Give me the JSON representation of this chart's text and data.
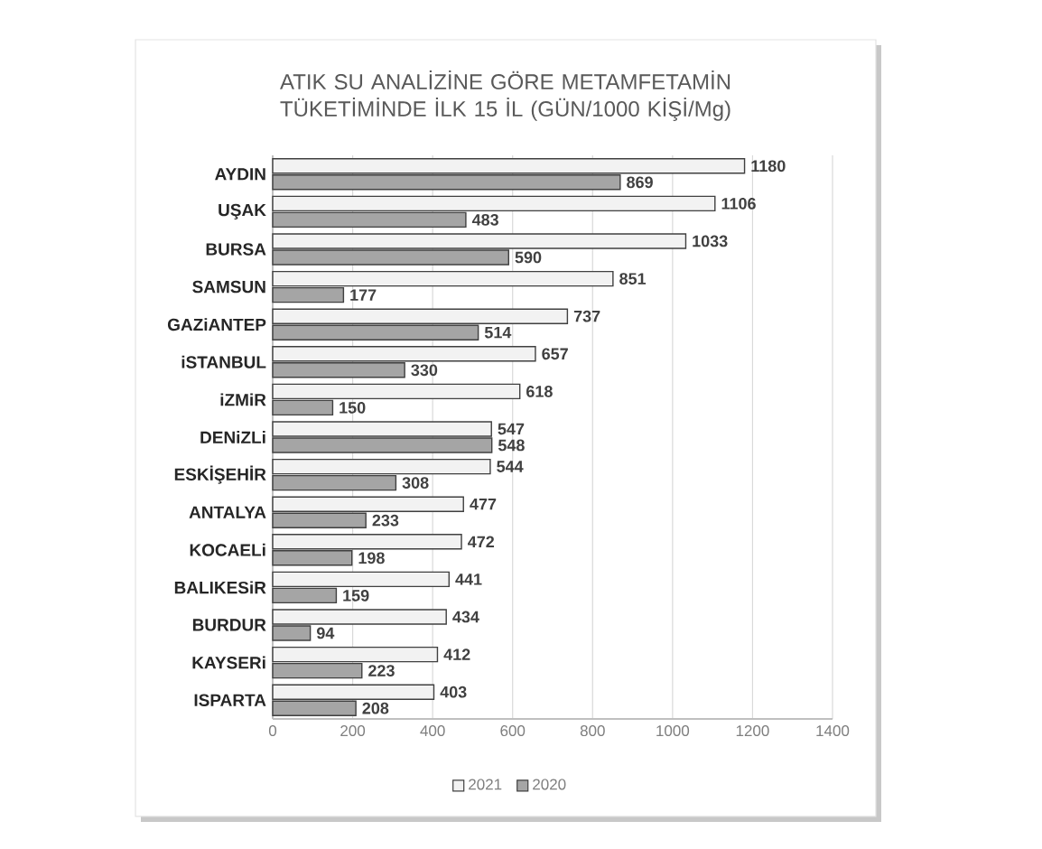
{
  "chart_data": {
    "type": "bar",
    "orientation": "horizontal",
    "title": "ATIK SU ANALİZİNE GÖRE METAMFETAMİN TÜKETİMİNDE İLK 15 İL (GÜN/1000 KİŞİ/Mg)",
    "categories": [
      "AYDIN",
      "UŞAK",
      "BURSA",
      "SAMSUN",
      "GAZiANTEP",
      "iSTANBUL",
      "iZMiR",
      "DENiZLi",
      "ESKİŞEHİR",
      "ANTALYA",
      "KOCAELi",
      "BALIKESiR",
      "BURDUR",
      "KAYSERi",
      "ISPARTA"
    ],
    "series": [
      {
        "name": "2021",
        "color": "#f2f2f2",
        "values": [
          1180,
          1106,
          1033,
          851,
          737,
          657,
          618,
          547,
          544,
          477,
          472,
          441,
          434,
          412,
          403
        ]
      },
      {
        "name": "2020",
        "color": "#a5a5a5",
        "values": [
          869,
          483,
          590,
          177,
          514,
          330,
          150,
          548,
          308,
          233,
          198,
          159,
          94,
          223,
          208
        ]
      }
    ],
    "xlim": [
      0,
      1400
    ],
    "xticks": [
      0,
      200,
      400,
      600,
      800,
      1000,
      1200,
      1400
    ],
    "grid": "x",
    "legend": "bottom",
    "data_labels": true
  }
}
